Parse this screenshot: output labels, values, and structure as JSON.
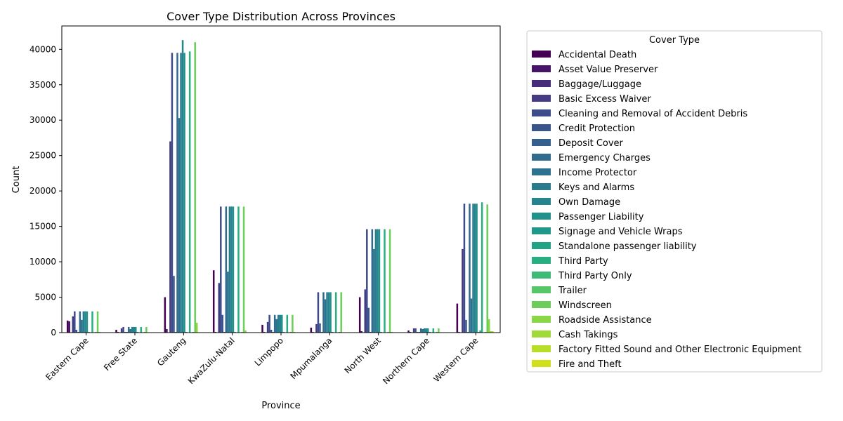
{
  "chart_data": {
    "type": "bar",
    "title": "Cover Type Distribution Across Provinces",
    "xlabel": "Province",
    "ylabel": "Count",
    "ylim": [
      0,
      43300
    ],
    "yticks": [
      0,
      5000,
      10000,
      15000,
      20000,
      25000,
      30000,
      35000,
      40000
    ],
    "grid": false,
    "legend_title": "Cover Type",
    "legend_placement": "outside-right",
    "categories": [
      "Eastern Cape",
      "Free State",
      "Gauteng",
      "KwaZulu-Natal",
      "Limpopo",
      "Mpumalanga",
      "North West",
      "Northern Cape",
      "Western Cape"
    ],
    "series": [
      {
        "name": "Accidental Death",
        "color": "#440154",
        "values": [
          1700,
          400,
          5000,
          8800,
          1100,
          700,
          5000,
          300,
          4100
        ]
      },
      {
        "name": "Asset Value Preserver",
        "color": "#461468",
        "values": [
          1600,
          100,
          500,
          100,
          100,
          100,
          200,
          100,
          100
        ]
      },
      {
        "name": "Baggage/Luggage",
        "color": "#472c7a",
        "values": [
          0,
          0,
          0,
          0,
          0,
          0,
          0,
          0,
          0
        ]
      },
      {
        "name": "Basic Excess Waiver",
        "color": "#453b84",
        "values": [
          2300,
          600,
          27000,
          7000,
          1500,
          1200,
          6100,
          600,
          11800
        ]
      },
      {
        "name": "Cleaning and Removal of Accident Debris",
        "color": "#3e4c8a",
        "values": [
          3000,
          800,
          39500,
          17800,
          2500,
          5700,
          14600,
          600,
          18200
        ]
      },
      {
        "name": "Credit Protection",
        "color": "#3a548c",
        "values": [
          400,
          100,
          8000,
          2500,
          400,
          1300,
          3500,
          100,
          1800
        ]
      },
      {
        "name": "Deposit Cover",
        "color": "#355f8d",
        "values": [
          100,
          100,
          100,
          100,
          100,
          100,
          100,
          100,
          100
        ]
      },
      {
        "name": "Emergency Charges",
        "color": "#306a8e",
        "values": [
          3000,
          800,
          39500,
          17800,
          2500,
          5700,
          14600,
          600,
          18200
        ]
      },
      {
        "name": "Income Protector",
        "color": "#2c728e",
        "values": [
          1800,
          500,
          30300,
          8600,
          1900,
          4700,
          11800,
          500,
          4800
        ]
      },
      {
        "name": "Keys and Alarms",
        "color": "#297b8e",
        "values": [
          3000,
          800,
          39500,
          17800,
          2500,
          5700,
          14600,
          600,
          18200
        ]
      },
      {
        "name": "Own Damage",
        "color": "#25848e",
        "values": [
          3000,
          800,
          41300,
          17800,
          2500,
          5700,
          14600,
          600,
          18200
        ]
      },
      {
        "name": "Passenger Liability",
        "color": "#21918c",
        "values": [
          3000,
          800,
          39500,
          17800,
          2500,
          5700,
          14600,
          600,
          18200
        ]
      },
      {
        "name": "Signage and Vehicle Wraps",
        "color": "#1f988b",
        "values": [
          100,
          100,
          100,
          100,
          100,
          100,
          100,
          100,
          100
        ]
      },
      {
        "name": "Standalone passenger liability",
        "color": "#20a386",
        "values": [
          0,
          0,
          0,
          0,
          0,
          0,
          0,
          0,
          300
        ]
      },
      {
        "name": "Third Party",
        "color": "#28ae80",
        "values": [
          3000,
          800,
          39700,
          17800,
          2500,
          5700,
          14600,
          600,
          18400
        ]
      },
      {
        "name": "Third Party Only",
        "color": "#3bbb75",
        "values": [
          0,
          0,
          0,
          0,
          0,
          0,
          0,
          0,
          0
        ]
      },
      {
        "name": "Trailer",
        "color": "#56c667",
        "values": [
          100,
          100,
          100,
          100,
          100,
          100,
          100,
          100,
          100
        ]
      },
      {
        "name": "Windscreen",
        "color": "#6ccd5a",
        "values": [
          3000,
          800,
          41000,
          17800,
          2500,
          5700,
          14600,
          600,
          18100
        ]
      },
      {
        "name": "Roadside Assistance",
        "color": "#8bd646",
        "values": [
          100,
          0,
          1400,
          300,
          100,
          0,
          100,
          0,
          1900
        ]
      },
      {
        "name": "Cash Takings",
        "color": "#a0da39",
        "values": [
          0,
          0,
          0,
          0,
          0,
          0,
          0,
          0,
          200
        ]
      },
      {
        "name": "Factory Fitted Sound and Other Electronic Equipment",
        "color": "#b8de29",
        "values": [
          0,
          0,
          0,
          0,
          0,
          0,
          0,
          0,
          200
        ]
      },
      {
        "name": "Fire and Theft",
        "color": "#d0e11c",
        "values": [
          0,
          0,
          0,
          0,
          0,
          0,
          0,
          0,
          0
        ]
      }
    ]
  }
}
